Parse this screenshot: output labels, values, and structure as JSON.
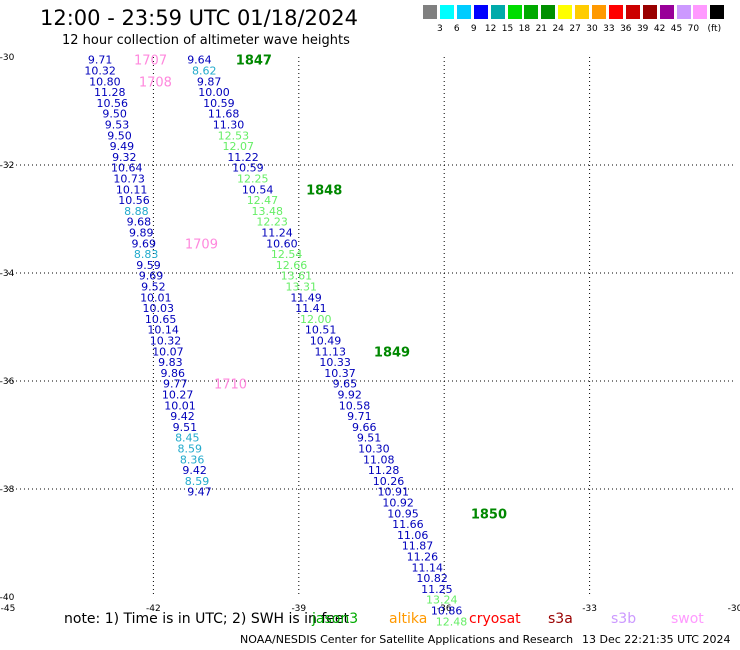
{
  "header": {
    "title": "12:00 - 23:59 UTC 01/18/2024",
    "subtitle": "12 hour collection of altimeter wave heights"
  },
  "colorbar": {
    "colors": [
      "#808080",
      "#00ffff",
      "#00ccff",
      "#0000ff",
      "#00aaaa",
      "#00dd00",
      "#00aa00",
      "#009000",
      "#ffff00",
      "#ffcc00",
      "#ff9900",
      "#ff0000",
      "#cc0000",
      "#990000",
      "#990099",
      "#cc99ff",
      "#ff99ff",
      "#000000"
    ],
    "labels": [
      "3",
      "6",
      "9",
      "12",
      "15",
      "18",
      "21",
      "24",
      "27",
      "30",
      "33",
      "36",
      "39",
      "42",
      "45",
      "70",
      "(ft)"
    ]
  },
  "chart_data": {
    "type": "scatter",
    "title": "12:00 - 23:59 UTC 01/18/2024",
    "subtitle": "12 hour collection of altimeter wave heights",
    "xlim": [
      -45,
      -30
    ],
    "ylim": [
      -40,
      -30
    ],
    "x_ticks": [
      -45,
      -42,
      -39,
      -36,
      -33,
      -30
    ],
    "y_ticks": [
      -30,
      -32,
      -34,
      -36,
      -38,
      -40
    ],
    "grid": true,
    "tracks": [
      {
        "points": [
          {
            "x": -43.1,
            "y": -30.05,
            "v": "9.71"
          },
          {
            "x": -43.1,
            "y": -30.25,
            "v": "10.32"
          },
          {
            "x": -43.0,
            "y": -30.45,
            "v": "10.80"
          },
          {
            "x": -42.9,
            "y": -30.65,
            "v": "11.28"
          },
          {
            "x": -42.85,
            "y": -30.85,
            "v": "10.56"
          },
          {
            "x": -42.8,
            "y": -31.05,
            "v": "9.50"
          },
          {
            "x": -42.75,
            "y": -31.25,
            "v": "9.53"
          },
          {
            "x": -42.7,
            "y": -31.45,
            "v": "9.50"
          },
          {
            "x": -42.65,
            "y": -31.65,
            "v": "9.49"
          },
          {
            "x": -42.6,
            "y": -31.85,
            "v": "9.32"
          },
          {
            "x": -42.55,
            "y": -32.05,
            "v": "10.64"
          },
          {
            "x": -42.5,
            "y": -32.25,
            "v": "10.73"
          },
          {
            "x": -42.45,
            "y": -32.45,
            "v": "10.11"
          },
          {
            "x": -42.4,
            "y": -32.65,
            "v": "10.56"
          },
          {
            "x": -42.35,
            "y": -32.85,
            "v": "8.88"
          },
          {
            "x": -42.3,
            "y": -33.05,
            "v": "9.68"
          },
          {
            "x": -42.25,
            "y": -33.25,
            "v": "9.89"
          },
          {
            "x": -42.2,
            "y": -33.45,
            "v": "9.69"
          },
          {
            "x": -42.15,
            "y": -33.65,
            "v": "8.83"
          },
          {
            "x": -42.1,
            "y": -33.85,
            "v": "9.59"
          },
          {
            "x": -42.05,
            "y": -34.05,
            "v": "9.69"
          },
          {
            "x": -42.0,
            "y": -34.25,
            "v": "9.52"
          },
          {
            "x": -41.95,
            "y": -34.45,
            "v": "10.01"
          },
          {
            "x": -41.9,
            "y": -34.65,
            "v": "10.03"
          },
          {
            "x": -41.85,
            "y": -34.85,
            "v": "10.65"
          },
          {
            "x": -41.8,
            "y": -35.05,
            "v": "10.14"
          },
          {
            "x": -41.75,
            "y": -35.25,
            "v": "10.32"
          },
          {
            "x": -41.7,
            "y": -35.45,
            "v": "10.07"
          },
          {
            "x": -41.65,
            "y": -35.65,
            "v": "9.83"
          },
          {
            "x": -41.6,
            "y": -35.85,
            "v": "9.86"
          },
          {
            "x": -41.55,
            "y": -36.05,
            "v": "9.77"
          },
          {
            "x": -41.5,
            "y": -36.25,
            "v": "10.27"
          },
          {
            "x": -41.45,
            "y": -36.45,
            "v": "10.01"
          },
          {
            "x": -41.4,
            "y": -36.65,
            "v": "9.42"
          },
          {
            "x": -41.35,
            "y": -36.85,
            "v": "9.51"
          },
          {
            "x": -41.3,
            "y": -37.05,
            "v": "8.45"
          },
          {
            "x": -41.25,
            "y": -37.25,
            "v": "8.59"
          },
          {
            "x": -41.2,
            "y": -37.45,
            "v": "8.36"
          },
          {
            "x": -41.15,
            "y": -37.65,
            "v": "9.42"
          },
          {
            "x": -41.1,
            "y": -37.85,
            "v": "8.59"
          },
          {
            "x": -41.05,
            "y": -38.05,
            "v": "9.47"
          }
        ],
        "time_labels": [
          {
            "x": -42.4,
            "y": -30.05,
            "v": "1707"
          },
          {
            "x": -42.3,
            "y": -30.45,
            "v": "1708"
          },
          {
            "x": -41.35,
            "y": -33.45,
            "v": "1709"
          },
          {
            "x": -40.75,
            "y": -36.05,
            "v": "1710"
          }
        ]
      },
      {
        "points": [
          {
            "x": -41.05,
            "y": -30.05,
            "v": "9.64"
          },
          {
            "x": -40.95,
            "y": -30.25,
            "v": "8.62"
          },
          {
            "x": -40.85,
            "y": -30.45,
            "v": "9.87"
          },
          {
            "x": -40.75,
            "y": -30.65,
            "v": "10.00"
          },
          {
            "x": -40.65,
            "y": -30.85,
            "v": "10.59"
          },
          {
            "x": -40.55,
            "y": -31.05,
            "v": "11.68"
          },
          {
            "x": -40.45,
            "y": -31.25,
            "v": "11.30"
          },
          {
            "x": -40.35,
            "y": -31.45,
            "v": "12.53"
          },
          {
            "x": -40.25,
            "y": -31.65,
            "v": "12.07"
          },
          {
            "x": -40.15,
            "y": -31.85,
            "v": "11.22"
          },
          {
            "x": -40.05,
            "y": -32.05,
            "v": "10.59"
          },
          {
            "x": -39.95,
            "y": -32.25,
            "v": "12.25"
          },
          {
            "x": -39.85,
            "y": -32.45,
            "v": "10.54"
          },
          {
            "x": -39.75,
            "y": -32.65,
            "v": "12.47"
          },
          {
            "x": -39.65,
            "y": -32.85,
            "v": "13.48"
          },
          {
            "x": -39.55,
            "y": -33.05,
            "v": "12.23"
          },
          {
            "x": -39.45,
            "y": -33.25,
            "v": "11.24"
          },
          {
            "x": -39.35,
            "y": -33.45,
            "v": "10.60"
          },
          {
            "x": -39.25,
            "y": -33.65,
            "v": "12.54"
          },
          {
            "x": -39.15,
            "y": -33.85,
            "v": "12.66"
          },
          {
            "x": -39.05,
            "y": -34.05,
            "v": "13.61"
          },
          {
            "x": -38.95,
            "y": -34.25,
            "v": "13.31"
          },
          {
            "x": -38.85,
            "y": -34.45,
            "v": "11.49"
          },
          {
            "x": -38.75,
            "y": -34.65,
            "v": "11.41"
          },
          {
            "x": -38.65,
            "y": -34.85,
            "v": "12.00"
          },
          {
            "x": -38.55,
            "y": -35.05,
            "v": "10.51"
          },
          {
            "x": -38.45,
            "y": -35.25,
            "v": "10.49"
          },
          {
            "x": -38.35,
            "y": -35.45,
            "v": "11.13"
          },
          {
            "x": -38.25,
            "y": -35.65,
            "v": "10.33"
          },
          {
            "x": -38.15,
            "y": -35.85,
            "v": "10.37"
          },
          {
            "x": -38.05,
            "y": -36.05,
            "v": "9.65"
          },
          {
            "x": -37.95,
            "y": -36.25,
            "v": "9.92"
          },
          {
            "x": -37.85,
            "y": -36.45,
            "v": "10.58"
          },
          {
            "x": -37.75,
            "y": -36.65,
            "v": "9.71"
          },
          {
            "x": -37.65,
            "y": -36.85,
            "v": "9.66"
          },
          {
            "x": -37.55,
            "y": -37.05,
            "v": "9.51"
          },
          {
            "x": -37.45,
            "y": -37.25,
            "v": "10.30"
          },
          {
            "x": -37.35,
            "y": -37.45,
            "v": "11.08"
          },
          {
            "x": -37.25,
            "y": -37.65,
            "v": "11.28"
          },
          {
            "x": -37.15,
            "y": -37.85,
            "v": "10.26"
          },
          {
            "x": -37.05,
            "y": -38.05,
            "v": "10.91"
          },
          {
            "x": -36.95,
            "y": -38.25,
            "v": "10.92"
          },
          {
            "x": -36.85,
            "y": -38.45,
            "v": "10.95"
          },
          {
            "x": -36.75,
            "y": -38.65,
            "v": "11.66"
          },
          {
            "x": -36.65,
            "y": -38.85,
            "v": "11.06"
          },
          {
            "x": -36.55,
            "y": -39.05,
            "v": "11.87"
          },
          {
            "x": -36.45,
            "y": -39.25,
            "v": "11.26"
          },
          {
            "x": -36.35,
            "y": -39.45,
            "v": "11.14"
          },
          {
            "x": -36.25,
            "y": -39.65,
            "v": "10.82"
          },
          {
            "x": -36.15,
            "y": -39.85,
            "v": "11.25"
          },
          {
            "x": -36.05,
            "y": -40.05,
            "v": "13.24"
          },
          {
            "x": -35.95,
            "y": -40.25,
            "v": "10.86"
          },
          {
            "x": -35.85,
            "y": -40.45,
            "v": "12.48"
          }
        ],
        "time_labels": [
          {
            "x": -40.3,
            "y": -30.05,
            "v": "1847"
          },
          {
            "x": -38.85,
            "y": -32.45,
            "v": "1848"
          },
          {
            "x": -37.45,
            "y": -35.45,
            "v": "1849"
          },
          {
            "x": -35.45,
            "y": -38.45,
            "v": "1850"
          }
        ]
      }
    ]
  },
  "footer": {
    "note": "note: 1) Time is in UTC; 2) SWH is in feet",
    "missions": [
      {
        "name": "jason3",
        "color": "#00aa00"
      },
      {
        "name": "altika",
        "color": "#ff9900"
      },
      {
        "name": "cryosat",
        "color": "#ff0000"
      },
      {
        "name": "s3a",
        "color": "#990000"
      },
      {
        "name": "s3b",
        "color": "#cc99ff"
      },
      {
        "name": "swot",
        "color": "#ff99ff"
      }
    ],
    "credit": "NOAA/NESDIS Center for Satellite Applications and Research",
    "timestamp": "13 Dec 22:21:35 UTC 2024"
  }
}
